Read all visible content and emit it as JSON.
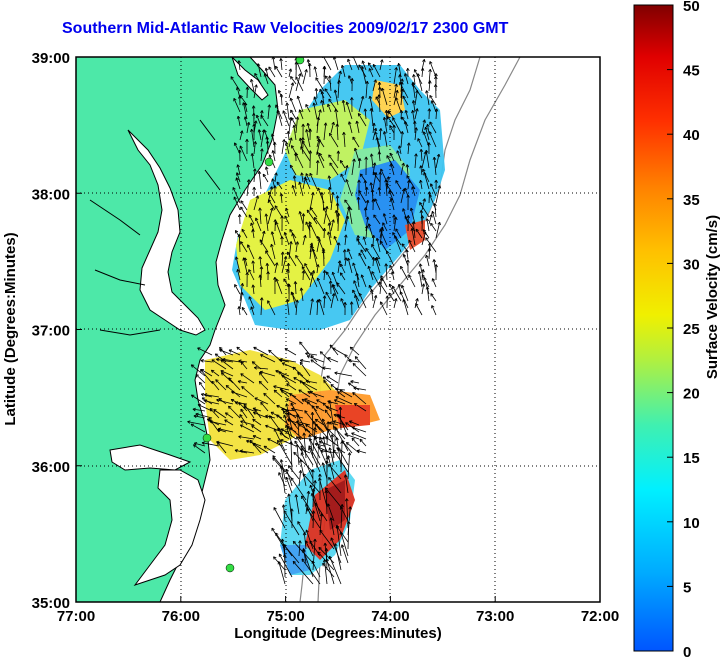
{
  "title": "Southern Mid-Atlantic Raw Velocities 2009/02/17 2300 GMT",
  "map": {
    "x_axis_label": "Longitude (Degrees:Minutes)",
    "y_axis_label": "Latitude (Degrees:Minutes)",
    "lon_ticks": [
      "77:00",
      "76:00",
      "75:00",
      "74:00",
      "73:00",
      "72:00"
    ],
    "lat_ticks": [
      "39:00",
      "38:00",
      "37:00",
      "36:00",
      "35:00"
    ],
    "lon_range": [
      -77,
      -72
    ],
    "lat_range": [
      35,
      39
    ],
    "grid": "dotted",
    "land_color": "#4de8a8",
    "coast_color": "#000000",
    "bathymetry_color": "#888888",
    "station_color": "#33dd44"
  },
  "colorbar": {
    "label": "Surface Velocity (cm/s)",
    "ticks": [
      "0",
      "5",
      "10",
      "15",
      "20",
      "25",
      "30",
      "35",
      "40",
      "45",
      "50"
    ],
    "range": [
      0,
      50
    ],
    "colormap": "jet"
  }
}
